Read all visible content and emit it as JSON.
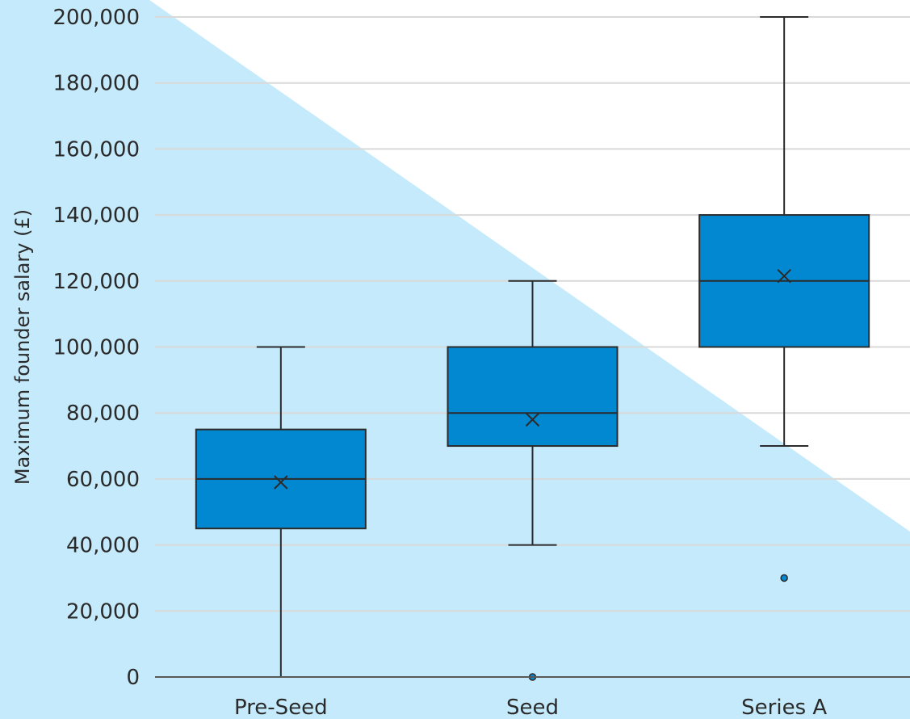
{
  "chart_data": {
    "type": "boxplot",
    "title": "",
    "xlabel": "",
    "ylabel": "Maximum founder salary (£)",
    "ylim": [
      0,
      200000
    ],
    "yticks": [
      "0",
      "20,000",
      "40,000",
      "60,000",
      "80,000",
      "100,000",
      "120,000",
      "140,000",
      "160,000",
      "180,000",
      "200,000"
    ],
    "grid": true,
    "categories": [
      "Pre-Seed",
      "Seed",
      "Series A"
    ],
    "boxes": [
      {
        "category": "Pre-Seed",
        "min": 0,
        "q1": 45000,
        "median": 60000,
        "q3": 75000,
        "max": 100000,
        "mean": 59000,
        "outliers": []
      },
      {
        "category": "Seed",
        "min": 40000,
        "q1": 70000,
        "median": 80000,
        "q3": 100000,
        "max": 120000,
        "mean": 78000,
        "outliers": [
          0
        ]
      },
      {
        "category": "Series A",
        "min": 70000,
        "q1": 100000,
        "median": 120000,
        "q3": 140000,
        "max": 200000,
        "mean": 121500,
        "outliers": [
          30000
        ]
      }
    ],
    "colors": {
      "box_fill": "#0288d1",
      "stroke": "#2b2b2b",
      "background_shape": "#c4eafb",
      "grid": "#d9d9d9"
    }
  }
}
